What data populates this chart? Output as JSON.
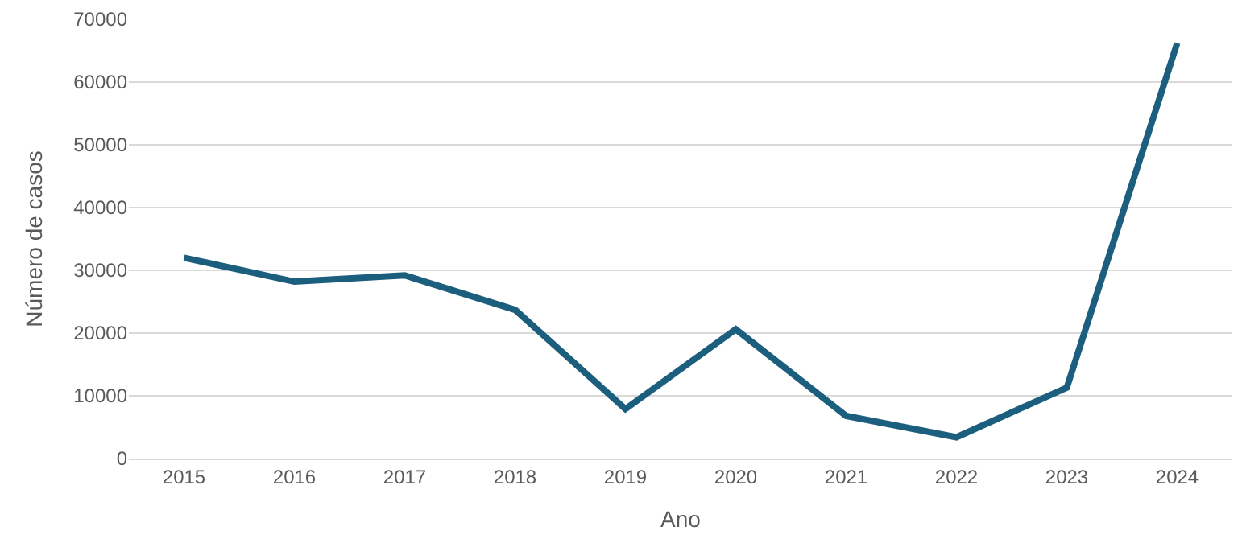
{
  "chart_data": {
    "type": "line",
    "xlabel": "Ano",
    "ylabel": "Número de casos",
    "categories": [
      "2015",
      "2016",
      "2017",
      "2018",
      "2019",
      "2020",
      "2021",
      "2022",
      "2023",
      "2024"
    ],
    "series": [
      {
        "color": "#1b5e7e",
        "values": [
          32000,
          28200,
          29200,
          23700,
          7900,
          20600,
          6800,
          3400,
          11300,
          66200
        ]
      }
    ],
    "ylim": [
      0,
      70000
    ],
    "yticks": [
      0,
      10000,
      20000,
      30000,
      40000,
      50000,
      60000,
      70000
    ],
    "grid": "y",
    "legend": false,
    "marker": "none",
    "line_style": "solid"
  }
}
